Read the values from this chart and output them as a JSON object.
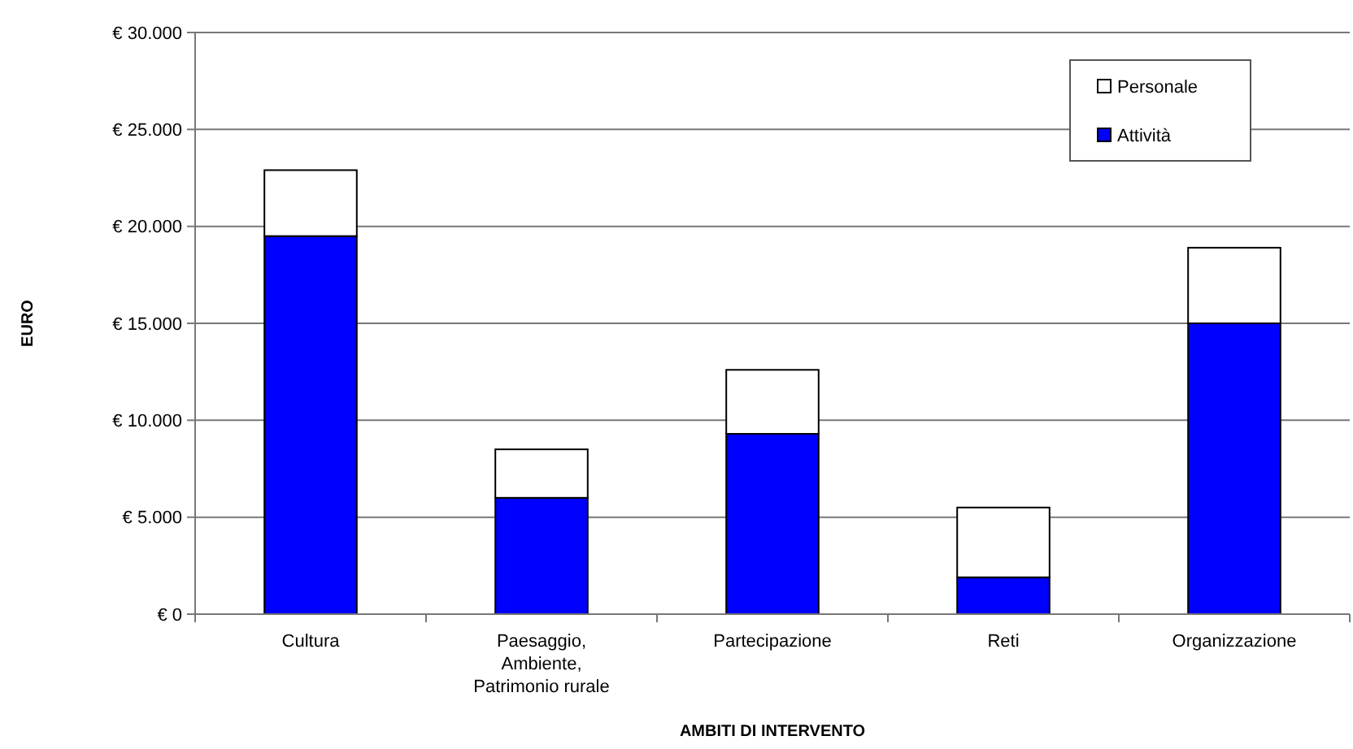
{
  "chart_data": {
    "type": "bar",
    "stacked": true,
    "xlabel": "AMBITI DI INTERVENTO",
    "ylabel": "EURO",
    "categories": [
      "Cultura",
      "Paesaggio, Ambiente, Patrimonio rurale",
      "Partecipazione",
      "Reti",
      "Organizzazione"
    ],
    "series": [
      {
        "name": "Attività",
        "color": "#0000ff",
        "values": [
          19500,
          6000,
          9300,
          1900,
          15000
        ]
      },
      {
        "name": "Personale",
        "color": "#ffffff",
        "values": [
          3400,
          2500,
          3300,
          3600,
          3900
        ]
      }
    ],
    "ylim": [
      0,
      30000
    ],
    "yticks": [
      {
        "value": 0,
        "label": "€ 0"
      },
      {
        "value": 5000,
        "label": "€ 5.000"
      },
      {
        "value": 10000,
        "label": "€ 10.000"
      },
      {
        "value": 15000,
        "label": "€ 15.000"
      },
      {
        "value": 20000,
        "label": "€ 20.000"
      },
      {
        "value": 25000,
        "label": "€ 25.000"
      },
      {
        "value": 30000,
        "label": "€ 30.000"
      }
    ],
    "grid": "y",
    "legend": "top right"
  }
}
